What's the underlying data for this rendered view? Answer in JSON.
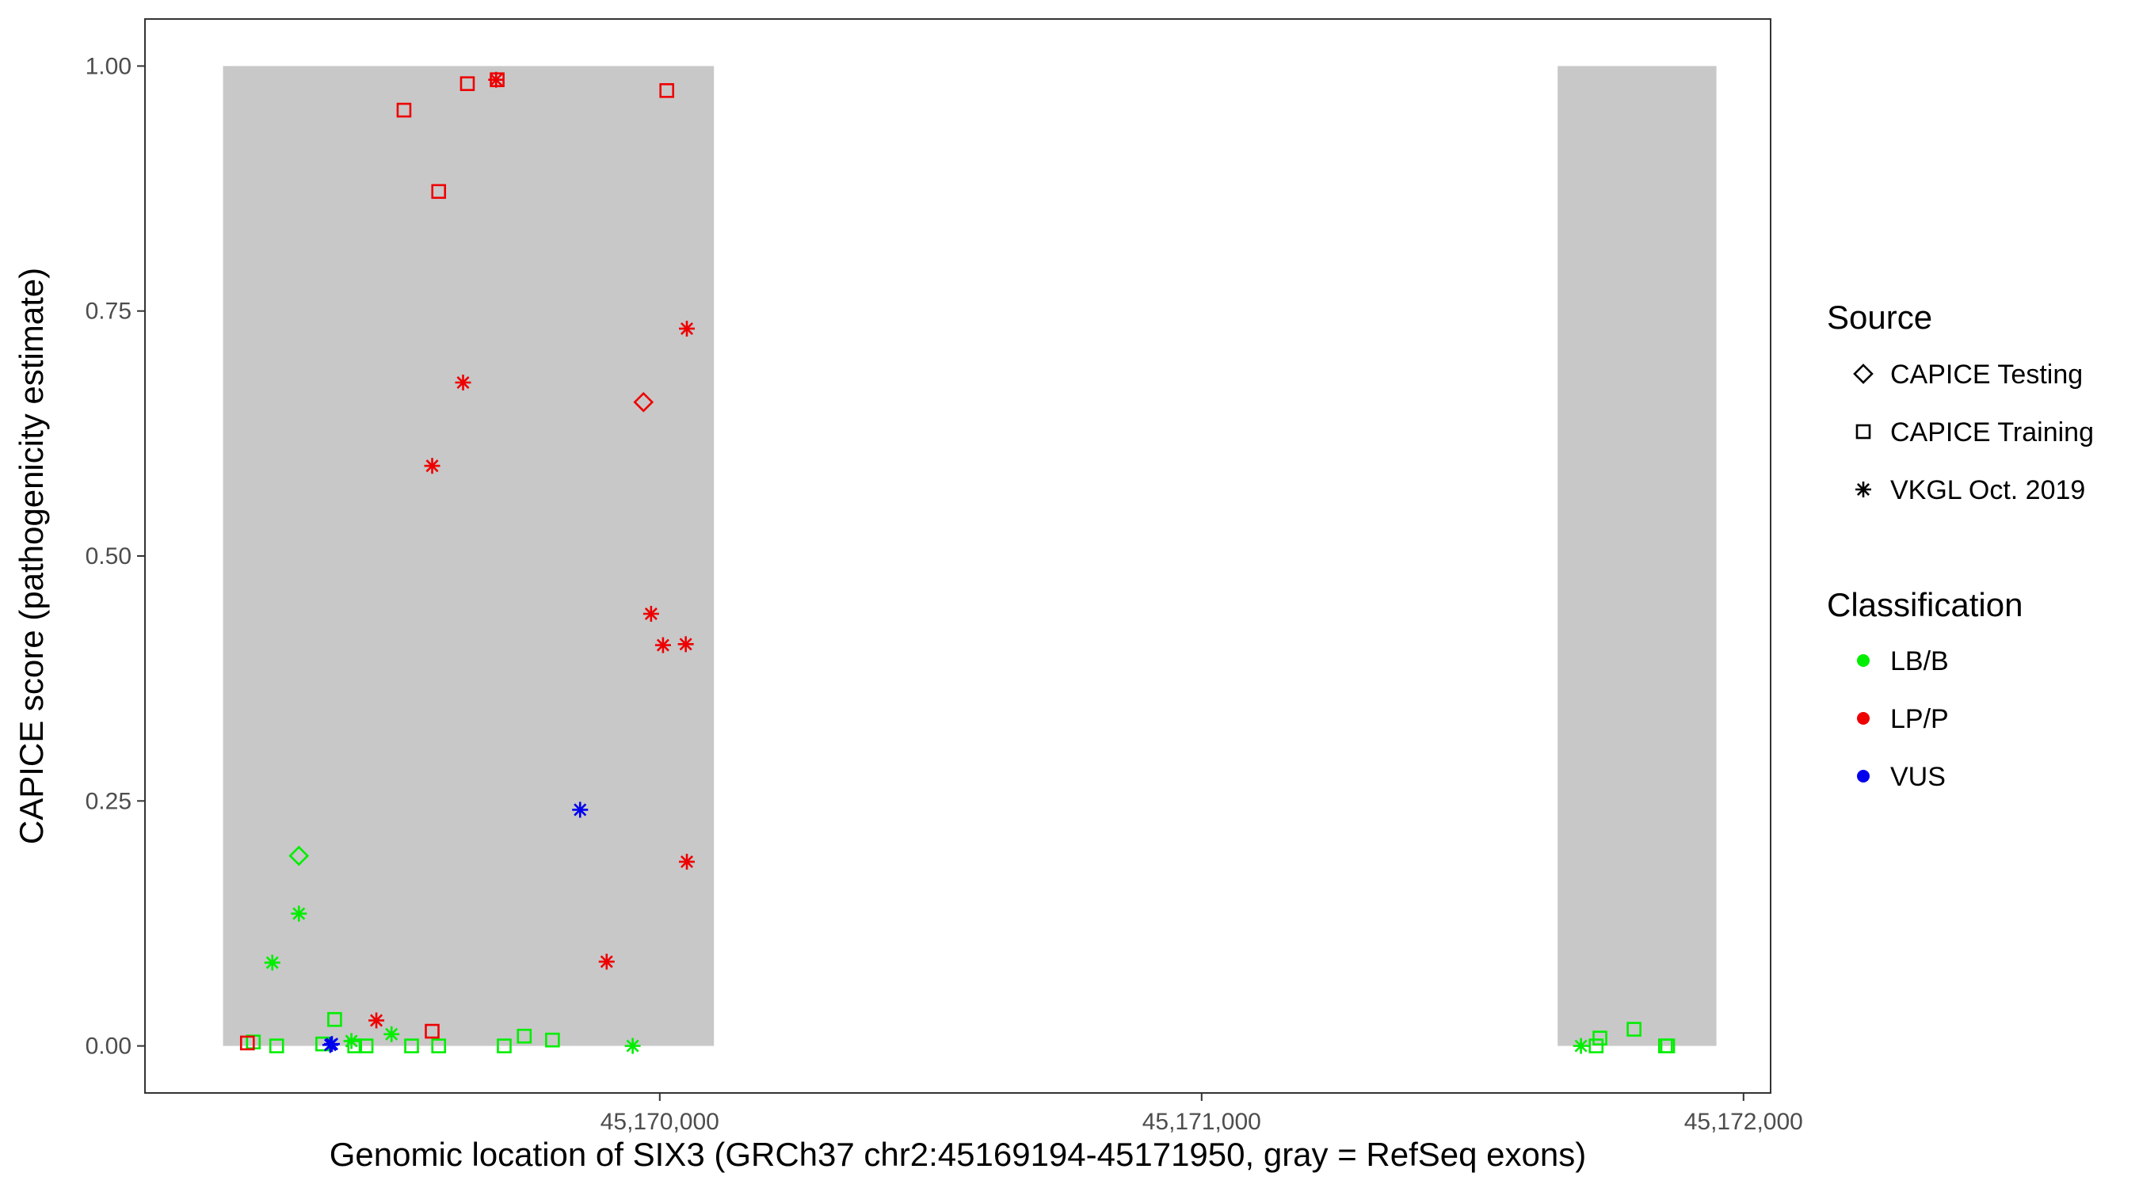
{
  "chart_data": {
    "type": "scatter",
    "title": "",
    "xlabel": "Genomic location of SIX3 (GRCh37 chr2:45169194-45171950, gray = RefSeq exons)",
    "ylabel": "CAPICE score (pathogenicity estimate)",
    "xlim": [
      45169050,
      45172050
    ],
    "ylim": [
      -0.048,
      1.048
    ],
    "x_ticks": [
      45170000,
      45171000,
      45172000
    ],
    "x_tick_labels": [
      "45,170,000",
      "45,171,000",
      "45,172,000"
    ],
    "y_ticks": [
      0,
      0.25,
      0.5,
      0.75,
      1.0
    ],
    "y_tick_labels": [
      "0.00",
      "0.25",
      "0.50",
      "0.75",
      "1.00"
    ],
    "grid": false,
    "exons": [
      {
        "start": 45169194,
        "end": 45170100
      },
      {
        "start": 45171657,
        "end": 45171950
      }
    ],
    "exon_color": "#c8c8c8",
    "legend_position": "right",
    "legend": {
      "source_title": "Source",
      "source_items": [
        {
          "label": "CAPICE Testing",
          "shape": "diamond"
        },
        {
          "label": "CAPICE Training",
          "shape": "square"
        },
        {
          "label": "VKGL Oct. 2019",
          "shape": "asterisk"
        }
      ],
      "class_title": "Classification",
      "class_items": [
        {
          "label": "LB/B",
          "color": "#00ee00"
        },
        {
          "label": "LP/P",
          "color": "#ee0000"
        },
        {
          "label": "VUS",
          "color": "#0000ee"
        }
      ]
    },
    "points": [
      {
        "x": 45169250,
        "y": 0.004,
        "source": "square",
        "class": "LB/B"
      },
      {
        "x": 45169293,
        "y": 0.0,
        "source": "square",
        "class": "LB/B"
      },
      {
        "x": 45169378,
        "y": 0.002,
        "source": "square",
        "class": "LB/B"
      },
      {
        "x": 45169400,
        "y": 0.027,
        "source": "square",
        "class": "LB/B"
      },
      {
        "x": 45169437,
        "y": 0.0,
        "source": "square",
        "class": "LB/B"
      },
      {
        "x": 45169458,
        "y": 0.0,
        "source": "square",
        "class": "LB/B"
      },
      {
        "x": 45169542,
        "y": 0.0,
        "source": "square",
        "class": "LB/B"
      },
      {
        "x": 45169592,
        "y": 0.0,
        "source": "square",
        "class": "LB/B"
      },
      {
        "x": 45169713,
        "y": 0.0,
        "source": "square",
        "class": "LB/B"
      },
      {
        "x": 45169750,
        "y": 0.01,
        "source": "square",
        "class": "LB/B"
      },
      {
        "x": 45169802,
        "y": 0.006,
        "source": "square",
        "class": "LB/B"
      },
      {
        "x": 45171735,
        "y": 0.008,
        "source": "square",
        "class": "LB/B"
      },
      {
        "x": 45171728,
        "y": 0.0,
        "source": "square",
        "class": "LB/B"
      },
      {
        "x": 45171798,
        "y": 0.017,
        "source": "square",
        "class": "LB/B"
      },
      {
        "x": 45171856,
        "y": 0.0,
        "source": "square",
        "class": "LB/B"
      },
      {
        "x": 45171860,
        "y": 0.0,
        "source": "square",
        "class": "LB/B"
      },
      {
        "x": 45169334,
        "y": 0.194,
        "source": "diamond",
        "class": "LB/B"
      },
      {
        "x": 45169334,
        "y": 0.135,
        "source": "asterisk",
        "class": "LB/B"
      },
      {
        "x": 45169285,
        "y": 0.085,
        "source": "asterisk",
        "class": "LB/B"
      },
      {
        "x": 45169431,
        "y": 0.005,
        "source": "asterisk",
        "class": "LB/B"
      },
      {
        "x": 45169505,
        "y": 0.012,
        "source": "asterisk",
        "class": "LB/B"
      },
      {
        "x": 45169950,
        "y": 0.0,
        "source": "asterisk",
        "class": "LB/B"
      },
      {
        "x": 45171700,
        "y": 0.0,
        "source": "asterisk",
        "class": "LB/B"
      },
      {
        "x": 45169239,
        "y": 0.003,
        "source": "square",
        "class": "LP/P"
      },
      {
        "x": 45169580,
        "y": 0.015,
        "source": "square",
        "class": "LP/P"
      },
      {
        "x": 45169528,
        "y": 0.955,
        "source": "square",
        "class": "LP/P"
      },
      {
        "x": 45169592,
        "y": 0.872,
        "source": "square",
        "class": "LP/P"
      },
      {
        "x": 45169645,
        "y": 0.982,
        "source": "square",
        "class": "LP/P"
      },
      {
        "x": 45169700,
        "y": 0.986,
        "source": "square",
        "class": "LP/P"
      },
      {
        "x": 45170013,
        "y": 0.975,
        "source": "square",
        "class": "LP/P"
      },
      {
        "x": 45169970,
        "y": 0.657,
        "source": "diamond",
        "class": "LP/P"
      },
      {
        "x": 45169698,
        "y": 0.986,
        "source": "asterisk",
        "class": "LP/P"
      },
      {
        "x": 45169637,
        "y": 0.677,
        "source": "asterisk",
        "class": "LP/P"
      },
      {
        "x": 45169580,
        "y": 0.592,
        "source": "asterisk",
        "class": "LP/P"
      },
      {
        "x": 45170050,
        "y": 0.732,
        "source": "asterisk",
        "class": "LP/P"
      },
      {
        "x": 45169984,
        "y": 0.441,
        "source": "asterisk",
        "class": "LP/P"
      },
      {
        "x": 45170006,
        "y": 0.409,
        "source": "asterisk",
        "class": "LP/P"
      },
      {
        "x": 45170048,
        "y": 0.41,
        "source": "asterisk",
        "class": "LP/P"
      },
      {
        "x": 45170050,
        "y": 0.188,
        "source": "asterisk",
        "class": "LP/P"
      },
      {
        "x": 45169902,
        "y": 0.086,
        "source": "asterisk",
        "class": "LP/P"
      },
      {
        "x": 45169477,
        "y": 0.026,
        "source": "asterisk",
        "class": "LP/P"
      },
      {
        "x": 45169853,
        "y": 0.241,
        "source": "asterisk",
        "class": "VUS"
      },
      {
        "x": 45169395,
        "y": 0.002,
        "source": "asterisk",
        "class": "VUS"
      },
      {
        "x": 45169392,
        "y": 0.001,
        "source": "asterisk",
        "class": "VUS"
      }
    ]
  }
}
